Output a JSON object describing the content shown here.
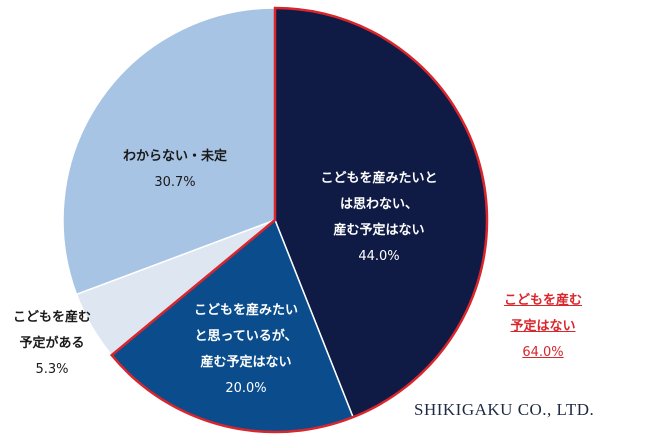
{
  "chart_data": {
    "type": "pie",
    "slices": [
      {
        "label": "こどもを産みたいとは思わない、産む予定はない",
        "value": 44.0,
        "color": "#0f1a45"
      },
      {
        "label": "こどもを産みたいと思っているが、産む予定はない",
        "value": 20.0,
        "color": "#0b4d8c"
      },
      {
        "label": "こどもを産む予定がある",
        "value": 5.3,
        "color": "#dde6f1"
      },
      {
        "label": "わからない・未定",
        "value": 30.7,
        "color": "#a8c4e4"
      }
    ],
    "highlight": {
      "label": "こどもを産む予定はない",
      "value": "64.0%",
      "color": "#d9262c"
    }
  },
  "labels": {
    "s1": {
      "l1": "こどもを産みたいと",
      "l2": "は思わない、",
      "l3": "産む予定はない",
      "pct": "44.0%"
    },
    "s2": {
      "l1": "こどもを産みたい",
      "l2": "と思っているが、",
      "l3": "産む予定はない",
      "pct": "20.0%"
    },
    "s3": {
      "l1": "こどもを産む",
      "l2": "予定がある",
      "pct": "5.3%"
    },
    "s4": {
      "l1": "わからない・未定",
      "pct": "30.7%"
    },
    "hl": {
      "l1": "こどもを産む",
      "l2": "予定はない",
      "pct": "64.0%"
    }
  },
  "credit": "SHIKIGAKU CO., LTD."
}
